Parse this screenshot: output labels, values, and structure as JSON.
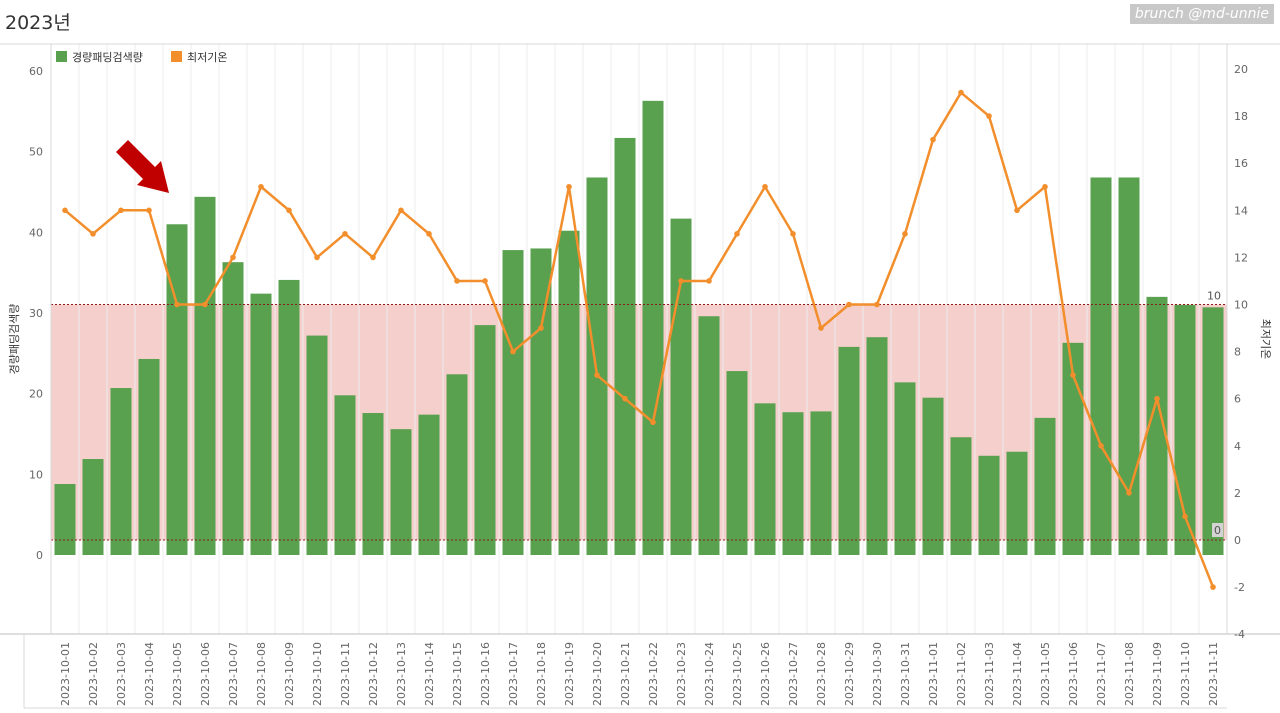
{
  "title": "2023년",
  "watermark": "brunch @md-unnie",
  "colors": {
    "bar": "#59a14f",
    "line": "#f28e2b",
    "reference_band": "#f4cfcb",
    "reference_line": "#8b1a1a",
    "arrow": "#c00000"
  },
  "chart_data": {
    "type": "bar",
    "categories": [
      "2023-10-01",
      "2023-10-02",
      "2023-10-03",
      "2023-10-04",
      "2023-10-05",
      "2023-10-06",
      "2023-10-07",
      "2023-10-08",
      "2023-10-09",
      "2023-10-10",
      "2023-10-11",
      "2023-10-12",
      "2023-10-13",
      "2023-10-14",
      "2023-10-15",
      "2023-10-16",
      "2023-10-17",
      "2023-10-18",
      "2023-10-19",
      "2023-10-20",
      "2023-10-21",
      "2023-10-22",
      "2023-10-23",
      "2023-10-24",
      "2023-10-25",
      "2023-10-26",
      "2023-10-27",
      "2023-10-28",
      "2023-10-29",
      "2023-10-30",
      "2023-10-31",
      "2023-11-01",
      "2023-11-02",
      "2023-11-03",
      "2023-11-04",
      "2023-11-05",
      "2023-11-06",
      "2023-11-07",
      "2023-11-08",
      "2023-11-09",
      "2023-11-10",
      "2023-11-11"
    ],
    "series": [
      {
        "name": "경량패딩검색량",
        "type": "bar",
        "axis": "left",
        "values": [
          8.8,
          11.9,
          20.7,
          24.3,
          41.0,
          44.4,
          36.3,
          32.4,
          34.1,
          27.2,
          19.8,
          17.6,
          15.6,
          17.4,
          22.4,
          28.5,
          37.8,
          38.0,
          40.2,
          46.8,
          51.7,
          56.3,
          41.7,
          29.6,
          22.8,
          18.8,
          17.7,
          17.8,
          25.8,
          27.0,
          21.4,
          19.5,
          14.6,
          12.3,
          12.8,
          17.0,
          26.3,
          46.8,
          46.8,
          32.0,
          31.0,
          30.7
        ]
      },
      {
        "name": "최저기온",
        "type": "line",
        "axis": "right",
        "values": [
          14,
          13,
          14,
          14,
          10,
          10,
          12,
          15,
          14,
          12,
          13,
          12,
          14,
          13,
          11,
          11,
          8,
          9,
          15,
          7,
          6,
          5,
          11,
          11,
          13,
          15,
          13,
          9,
          10,
          10,
          13,
          17,
          19,
          18,
          14,
          15,
          7,
          4,
          2,
          6,
          1,
          -2
        ]
      }
    ],
    "ylabel": "경량패딩검색량",
    "y2label": "최저기온",
    "ylim": [
      -10,
      62
    ],
    "y2lim": [
      -4,
      21
    ],
    "yticks": [
      0,
      10,
      20,
      30,
      40,
      50,
      60
    ],
    "y2ticks": [
      -4,
      -2,
      0,
      2,
      4,
      6,
      8,
      10,
      12,
      14,
      16,
      18,
      20
    ],
    "reference_band": {
      "axis": "right",
      "from": 0,
      "to": 10,
      "labels": [
        "0",
        "10"
      ]
    },
    "legend": "top-left",
    "grid": "vertical"
  }
}
